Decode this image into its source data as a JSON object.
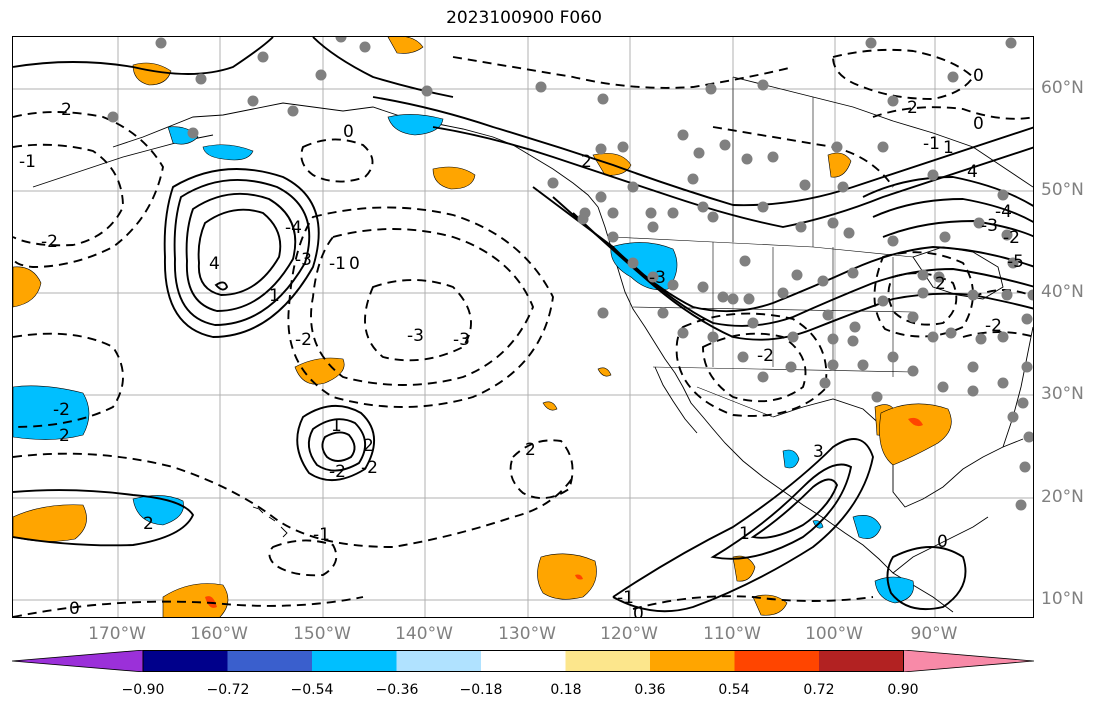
{
  "title": "2023100900 F060",
  "lon_labels": [
    "170°W",
    "160°W",
    "150°W",
    "140°W",
    "130°W",
    "120°W",
    "110°W",
    "100°W",
    "90°W"
  ],
  "lat_labels": [
    "60°N",
    "50°N",
    "40°N",
    "30°N",
    "20°N",
    "10°N"
  ],
  "contour_labels": [
    "2",
    "-1",
    "-2",
    "-4",
    "4",
    "-3",
    "-1",
    "0",
    "-2",
    "1",
    "2",
    "-3",
    "-3",
    "0",
    "-2",
    "2",
    "-2",
    "-2",
    "1",
    "2",
    "2",
    "-1",
    "0",
    "-1",
    "0",
    "1",
    "3",
    "-3",
    "-2",
    "0",
    "2",
    "0",
    "2",
    "-1",
    "1",
    "4",
    "-4",
    "-3",
    "-2",
    "-5",
    "2",
    "-2",
    "0"
  ],
  "colorbar": {
    "ticks": [
      "−0.90",
      "−0.72",
      "−0.54",
      "−0.36",
      "−0.18",
      "0.18",
      "0.36",
      "0.54",
      "0.72",
      "0.90"
    ],
    "colors": [
      "#9b30d9",
      "#00008b",
      "#3a5fcd",
      "#00bfff",
      "#b0e2ff",
      "#ffffff",
      "#fce68c",
      "#ffa500",
      "#ff4500",
      "#b22222",
      "#f88aa8"
    ]
  },
  "map_colors": {
    "negative_fill": "#00bfff",
    "positive_fill": "#ffa500",
    "strong_positive": "#ff4500",
    "dot": "#808080",
    "grid": "#b0b0b0"
  }
}
